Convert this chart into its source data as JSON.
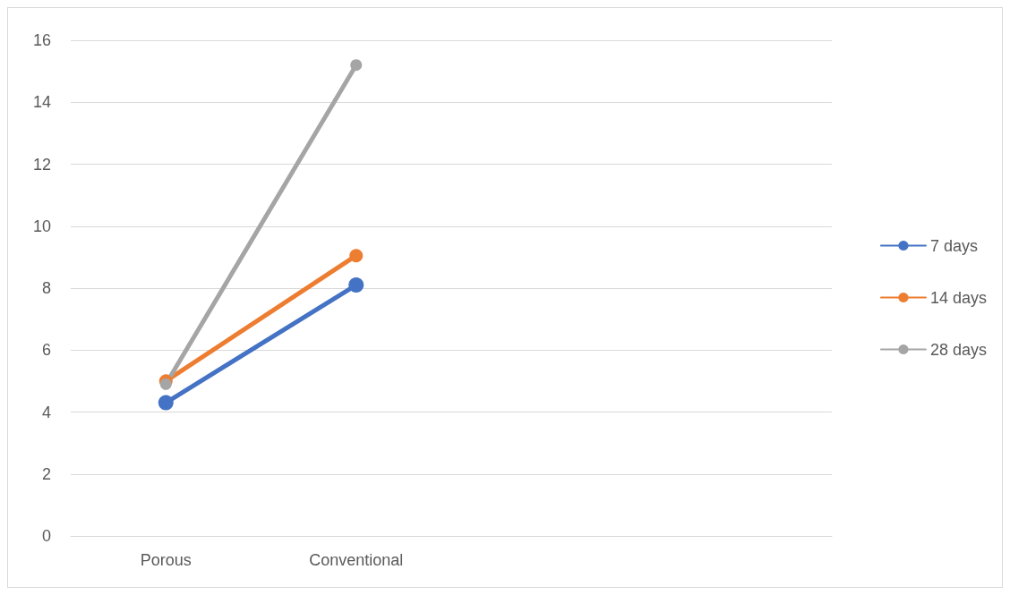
{
  "chart_data": {
    "type": "line",
    "categories": [
      "Porous",
      "Conventional",
      null,
      null
    ],
    "series": [
      {
        "name": "7 days",
        "color": "#4472c4",
        "values": [
          4.3,
          8.1,
          null,
          null
        ]
      },
      {
        "name": "14 days",
        "color": "#ed7d31",
        "values": [
          5.0,
          9.05,
          null,
          null
        ]
      },
      {
        "name": "28 days",
        "color": "#a5a5a5",
        "values": [
          4.9,
          15.2,
          null,
          null
        ]
      }
    ],
    "ylim": [
      0,
      16
    ],
    "yticks": [
      0,
      2,
      4,
      6,
      8,
      10,
      12,
      14,
      16
    ],
    "grid": "y",
    "legend": "right",
    "marker": "circle",
    "line_style": "solid"
  }
}
